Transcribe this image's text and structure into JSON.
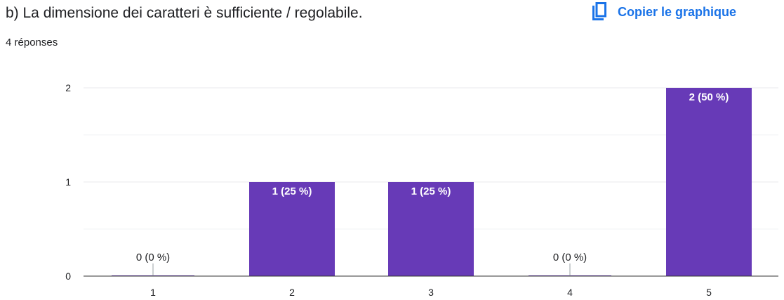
{
  "question": {
    "title": "b) La dimensione dei caratteri è sufficiente / regolabile.",
    "response_count": "4 réponses"
  },
  "toolbar": {
    "copy_label": "Copier le graphique",
    "copy_icon": "copy-icon"
  },
  "colors": {
    "bar": "#673ab7",
    "accent": "#1a73e8",
    "grid": "#e8eaed",
    "axis": "#333333",
    "text": "#202124"
  },
  "chart_data": {
    "type": "bar",
    "categories": [
      "1",
      "2",
      "3",
      "4",
      "5"
    ],
    "values": [
      0,
      1,
      1,
      0,
      2
    ],
    "data_labels": [
      "0 (0 %)",
      "1 (25 %)",
      "1 (25 %)",
      "0 (0 %)",
      "2 (50 %)"
    ],
    "y_ticks": [
      "0",
      "1",
      "2"
    ],
    "ylim": [
      0,
      2
    ],
    "title": "",
    "xlabel": "",
    "ylabel": "",
    "grid": true,
    "minor_grid": true
  }
}
